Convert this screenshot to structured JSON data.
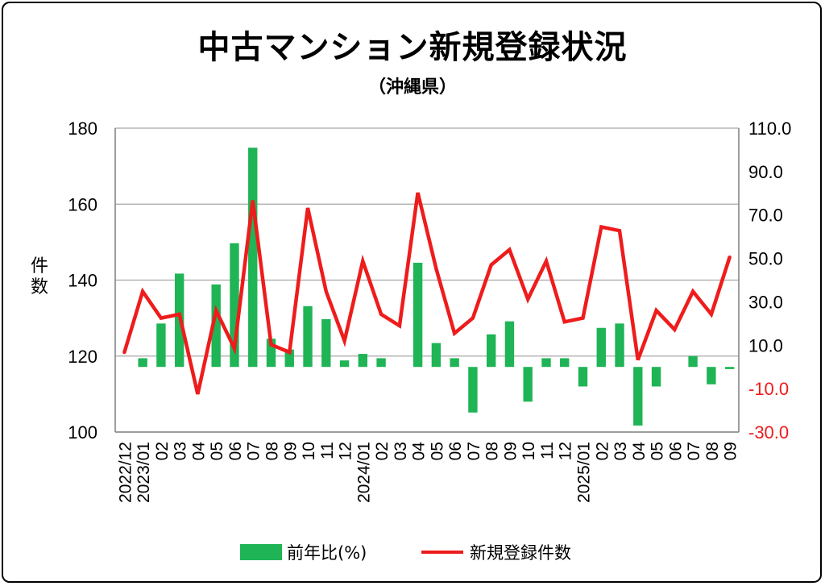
{
  "title": "中古マンション新規登録状況",
  "subtitle": "（沖縄県）",
  "colors": {
    "bar": "#1fb455",
    "line": "#ee1c1c",
    "right_axis_negative": "#ee1c1c",
    "grid": "#a6a6a6"
  },
  "chart_data": {
    "type": "bar+line",
    "categories": [
      "2022/12",
      "2023/01",
      "02",
      "03",
      "04",
      "05",
      "06",
      "07",
      "08",
      "09",
      "10",
      "11",
      "12",
      "2024/01",
      "02",
      "03",
      "04",
      "05",
      "06",
      "07",
      "08",
      "09",
      "10",
      "11",
      "12",
      "2025/01",
      "02",
      "03",
      "04",
      "05",
      "06",
      "07",
      "08",
      "09"
    ],
    "left_axis": {
      "label": "件数",
      "ylim": [
        100,
        180
      ],
      "ticks": [
        "100",
        "120",
        "140",
        "160",
        "180"
      ]
    },
    "right_axis": {
      "ylim": [
        -30,
        110
      ],
      "ticks": [
        "-30.0",
        "-10.0",
        "10.0",
        "30.0",
        "50.0",
        "70.0",
        "90.0",
        "110.0"
      ]
    },
    "grid": true,
    "legend_position": "bottom",
    "series": [
      {
        "name": "前年比(%)",
        "type": "bar",
        "axis": "right",
        "values": [
          null,
          4,
          20,
          43,
          null,
          38,
          57,
          101,
          13,
          8,
          28,
          22,
          3,
          6,
          4,
          null,
          48,
          11,
          4,
          -21,
          15,
          21,
          -16,
          4,
          4,
          -9,
          18,
          20,
          -27,
          -9,
          null,
          5,
          -8,
          -1
        ]
      },
      {
        "name": "新規登録件数",
        "type": "line",
        "axis": "left",
        "values": [
          121,
          137,
          130,
          131,
          110,
          132,
          122,
          161,
          123,
          121,
          159,
          137,
          124,
          145,
          131,
          128,
          163,
          143,
          126,
          130,
          144,
          148,
          135,
          145,
          129,
          130,
          154,
          153,
          119,
          132,
          127,
          137,
          131,
          146
        ]
      }
    ]
  }
}
